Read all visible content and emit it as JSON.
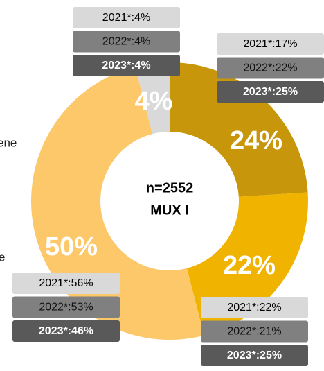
{
  "chart_data": {
    "type": "donut",
    "categories": [
      null,
      null,
      null,
      null
    ],
    "values": [
      24,
      22,
      50,
      4
    ],
    "value_labels": [
      "24%",
      "22%",
      "50%",
      "4%"
    ],
    "colors": [
      "#C8960A",
      "#F0B400",
      "#FDC86A",
      "#D9D9D9"
    ],
    "center_text": [
      "n=2552",
      "MUX I"
    ],
    "comparisons": [
      [
        "2021*:17%",
        "2022*:22%",
        "2023*:25%"
      ],
      [
        "2021*:22%",
        "2022*:21%",
        "2023*:25%"
      ],
      [
        "2021*:56%",
        "2022*:53%",
        "2023*:46%"
      ],
      [
        "2021*:4%",
        "2022*:4%",
        "2023*:4%"
      ]
    ],
    "cropped_legend": [
      "ene",
      "e"
    ]
  }
}
